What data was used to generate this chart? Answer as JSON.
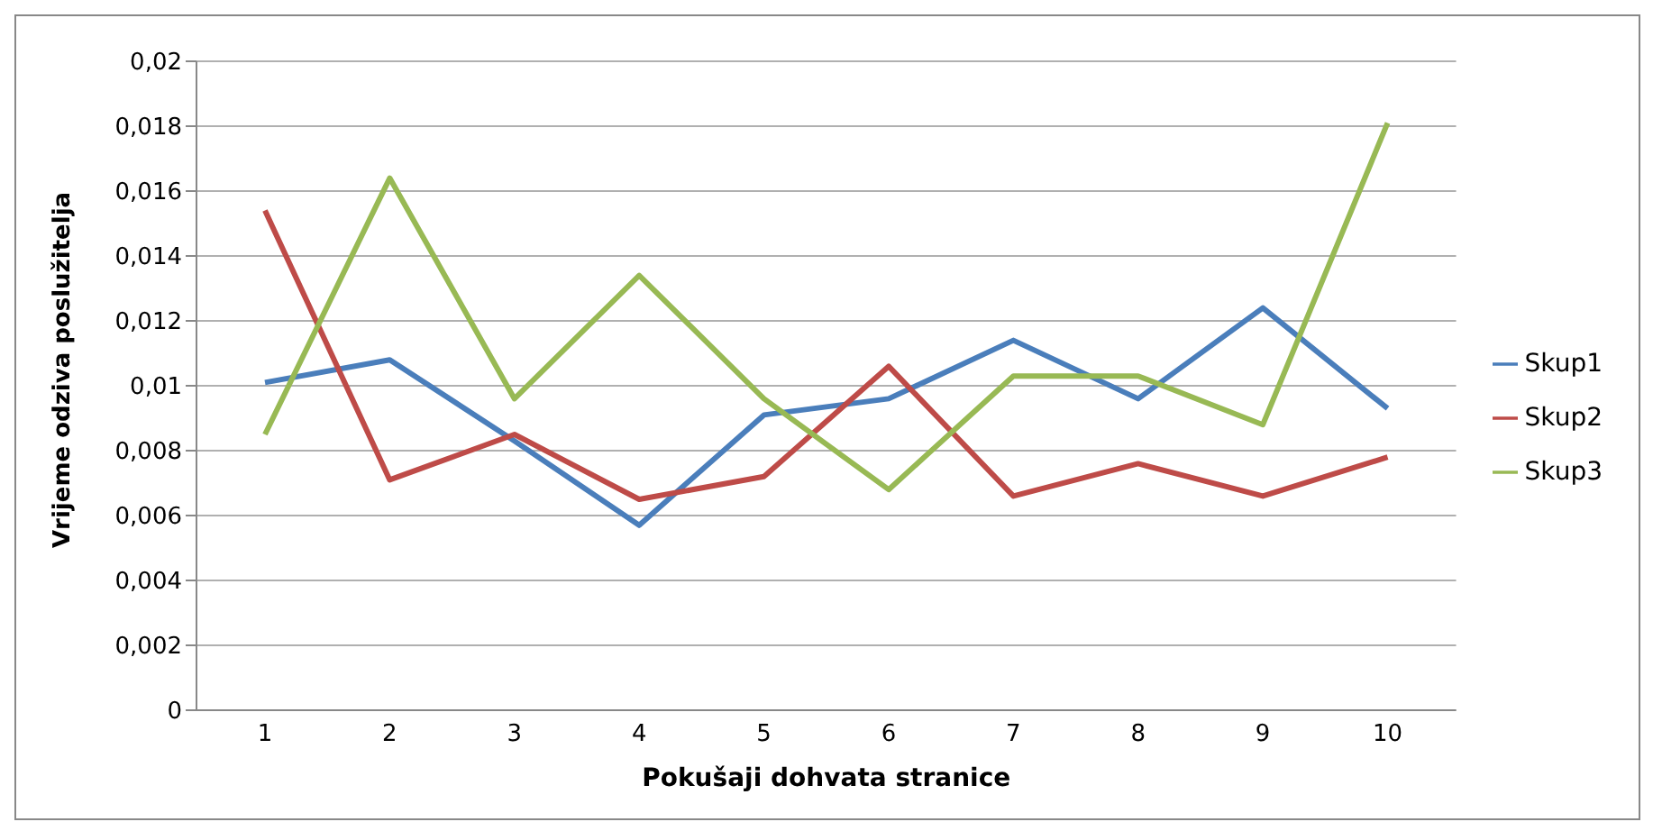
{
  "chart_data": {
    "type": "line",
    "xlabel": "Pokušaji dohvata stranice",
    "ylabel": "Vrijeme odziva poslužitelja",
    "categories": [
      "1",
      "2",
      "3",
      "4",
      "5",
      "6",
      "7",
      "8",
      "9",
      "10"
    ],
    "series": [
      {
        "name": "Skup1",
        "color": "#4a7ebb",
        "values": [
          0.0101,
          0.0108,
          0.0083,
          0.0057,
          0.0091,
          0.0096,
          0.0114,
          0.0096,
          0.0124,
          0.0093
        ]
      },
      {
        "name": "Skup2",
        "color": "#be4b48",
        "values": [
          0.0154,
          0.0071,
          0.0085,
          0.0065,
          0.0072,
          0.0106,
          0.0066,
          0.0076,
          0.0066,
          0.0078
        ]
      },
      {
        "name": "Skup3",
        "color": "#98b954",
        "values": [
          0.0085,
          0.0164,
          0.0096,
          0.0134,
          0.0096,
          0.0068,
          0.0103,
          0.0103,
          0.0088,
          0.0181
        ]
      }
    ],
    "ylim": [
      0,
      0.02
    ],
    "yticks": [
      {
        "value": 0,
        "label": "0"
      },
      {
        "value": 0.002,
        "label": "0,002"
      },
      {
        "value": 0.004,
        "label": "0,004"
      },
      {
        "value": 0.006,
        "label": "0,006"
      },
      {
        "value": 0.008,
        "label": "0,008"
      },
      {
        "value": 0.01,
        "label": "0,01"
      },
      {
        "value": 0.012,
        "label": "0,012"
      },
      {
        "value": 0.014,
        "label": "0,014"
      },
      {
        "value": 0.016,
        "label": "0,016"
      },
      {
        "value": 0.018,
        "label": "0,018"
      },
      {
        "value": 0.02,
        "label": "0,02"
      }
    ],
    "grid": "y",
    "legend": "right",
    "marker": "none",
    "line_style": "solid"
  }
}
